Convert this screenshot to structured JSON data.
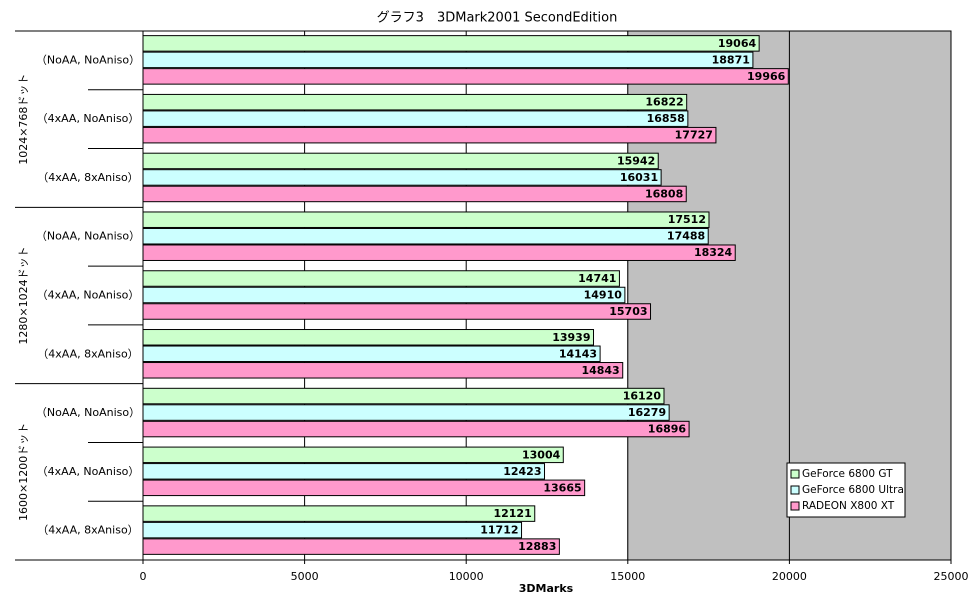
{
  "chart_data": {
    "type": "bar",
    "orientation": "horizontal",
    "title": "グラフ3　3DMark2001 SecondEdition",
    "x_label": "3DMarks",
    "groups": [
      "1024×768ドット",
      "1280×1024ドット",
      "1600×1200ドット"
    ],
    "categories": [
      "（NoAA, NoAniso）",
      "（4xAA, NoAniso）",
      "（4xAA, 8xAniso）",
      "（NoAA, NoAniso）",
      "（4xAA, NoAniso）",
      "（4xAA, 8xAniso）",
      "（NoAA, NoAniso）",
      "（4xAA, NoAniso）",
      "（4xAA, 8xAniso）"
    ],
    "series": [
      {
        "name": "GeForce 6800 GT",
        "color": "#ccffcc",
        "values": [
          19064,
          16822,
          15942,
          17512,
          14741,
          13939,
          16120,
          13004,
          12121
        ]
      },
      {
        "name": "GeForce 6800 Ultra",
        "color": "#ccffff",
        "values": [
          18871,
          16858,
          16031,
          17488,
          14910,
          14143,
          16279,
          12423,
          11712
        ]
      },
      {
        "name": "RADEON X800 XT",
        "color": "#ff99cc",
        "values": [
          19966,
          17727,
          16808,
          18324,
          15703,
          14843,
          16896,
          13665,
          12883
        ]
      }
    ],
    "xlim": [
      0,
      25000
    ],
    "xticks": [
      0,
      5000,
      10000,
      15000,
      20000,
      25000
    ],
    "grid": true,
    "legend": "lower right"
  }
}
